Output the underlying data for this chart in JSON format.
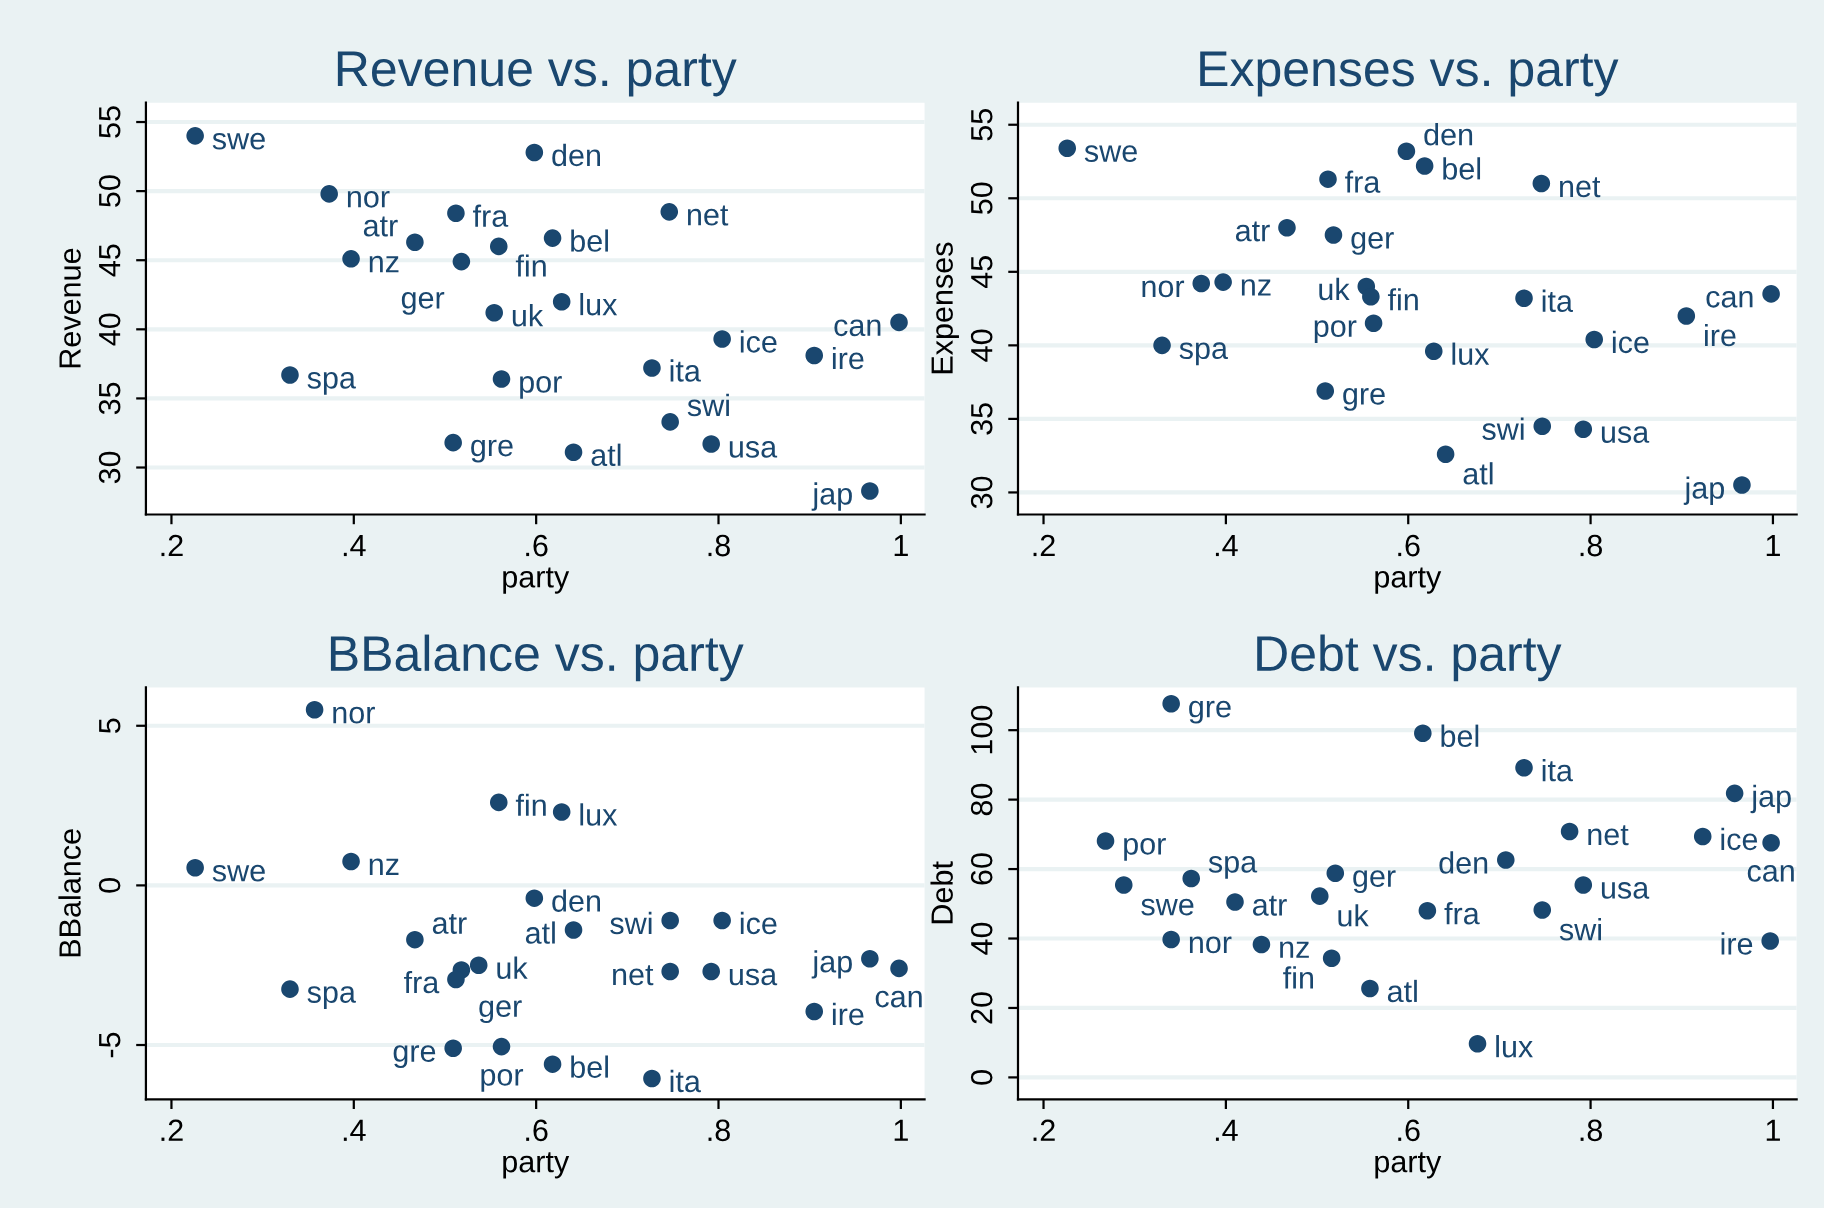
{
  "chart_data": [
    {
      "type": "scatter",
      "title": "Revenue vs. party",
      "xlabel": "party",
      "ylabel": "Revenue",
      "marker": "circle",
      "grid": "y",
      "xlim": [
        0.172,
        1.026
      ],
      "ylim": [
        26.6,
        56.4
      ],
      "xticks": [
        {
          "value": 0.2,
          "label": ".2"
        },
        {
          "value": 0.4,
          "label": ".4"
        },
        {
          "value": 0.6,
          "label": ".6"
        },
        {
          "value": 0.8,
          "label": ".8"
        },
        1
      ],
      "yticks": [
        30,
        35,
        40,
        45,
        50,
        55
      ],
      "x": [
        0.226,
        0.598,
        0.373,
        0.512,
        0.746,
        0.467,
        0.559,
        0.618,
        0.397,
        0.518,
        0.628,
        0.554,
        0.998,
        0.804,
        0.905,
        0.727,
        0.33,
        0.562,
        0.747,
        0.792,
        0.509,
        0.641,
        0.966
      ],
      "series": [
        {
          "color": "#1a476f",
          "values": [
            54.0,
            52.8,
            49.8,
            48.4,
            48.5,
            46.3,
            46.0,
            46.6,
            45.1,
            44.9,
            42.0,
            41.2,
            40.5,
            39.3,
            38.1,
            37.2,
            36.7,
            36.4,
            33.3,
            31.7,
            31.8,
            31.1,
            28.3
          ]
        }
      ],
      "annotations": [
        {
          "text": "swe",
          "x": 0.226,
          "y": 54.0
        },
        {
          "text": "den",
          "x": 0.598,
          "y": 52.8
        },
        {
          "text": "nor",
          "x": 0.373,
          "y": 49.8
        },
        {
          "text": "fra",
          "x": 0.512,
          "y": 48.4
        },
        {
          "text": "net",
          "x": 0.746,
          "y": 48.5
        },
        {
          "text": "atr",
          "x": 0.467,
          "y": 46.3
        },
        {
          "text": "fin",
          "x": 0.559,
          "y": 46.0
        },
        {
          "text": "bel",
          "x": 0.618,
          "y": 46.6
        },
        {
          "text": "nz",
          "x": 0.397,
          "y": 45.1
        },
        {
          "text": "ger",
          "x": 0.518,
          "y": 44.9
        },
        {
          "text": "lux",
          "x": 0.628,
          "y": 42.0
        },
        {
          "text": "uk",
          "x": 0.554,
          "y": 41.2
        },
        {
          "text": "can",
          "x": 0.998,
          "y": 40.5
        },
        {
          "text": "ice",
          "x": 0.804,
          "y": 39.3
        },
        {
          "text": "ire",
          "x": 0.905,
          "y": 38.1
        },
        {
          "text": "ita",
          "x": 0.727,
          "y": 37.2
        },
        {
          "text": "spa",
          "x": 0.33,
          "y": 36.7
        },
        {
          "text": "por",
          "x": 0.562,
          "y": 36.4
        },
        {
          "text": "swi",
          "x": 0.747,
          "y": 33.3
        },
        {
          "text": "usa",
          "x": 0.792,
          "y": 31.7
        },
        {
          "text": "gre",
          "x": 0.509,
          "y": 31.8
        },
        {
          "text": "atl",
          "x": 0.641,
          "y": 31.1
        },
        {
          "text": "jap",
          "x": 0.966,
          "y": 28.3
        }
      ]
    },
    {
      "type": "scatter",
      "title": "Expenses vs. party",
      "xlabel": "party",
      "ylabel": "Expenses",
      "marker": "circle",
      "grid": "y",
      "xlim": [
        0.172,
        1.026
      ],
      "ylim": [
        28.5,
        56.5
      ],
      "xticks": [
        {
          "value": 0.2,
          "label": ".2"
        },
        {
          "value": 0.4,
          "label": ".4"
        },
        {
          "value": 0.6,
          "label": ".6"
        },
        {
          "value": 0.8,
          "label": ".8"
        },
        1
      ],
      "yticks": [
        30,
        35,
        40,
        45,
        50,
        55
      ],
      "x": [
        0.226,
        0.598,
        0.618,
        0.512,
        0.746,
        0.467,
        0.518,
        0.373,
        0.397,
        0.554,
        0.559,
        0.727,
        0.998,
        0.905,
        0.562,
        0.33,
        0.804,
        0.628,
        0.509,
        0.747,
        0.792,
        0.641,
        0.966
      ],
      "series": [
        {
          "color": "#1a476f",
          "values": [
            53.4,
            53.2,
            52.2,
            51.3,
            51.0,
            48.0,
            47.5,
            44.2,
            44.3,
            44.0,
            43.3,
            43.2,
            43.5,
            42.0,
            41.5,
            40.0,
            40.4,
            39.6,
            36.9,
            34.5,
            34.3,
            32.6,
            30.5
          ]
        }
      ],
      "annotations": [
        {
          "text": "swe",
          "x": 0.226,
          "y": 53.4
        },
        {
          "text": "den",
          "x": 0.598,
          "y": 53.2
        },
        {
          "text": "bel",
          "x": 0.618,
          "y": 52.2
        },
        {
          "text": "fra",
          "x": 0.512,
          "y": 51.3
        },
        {
          "text": "net",
          "x": 0.746,
          "y": 51.0
        },
        {
          "text": "atr",
          "x": 0.467,
          "y": 48.0
        },
        {
          "text": "ger",
          "x": 0.518,
          "y": 47.5
        },
        {
          "text": "nor",
          "x": 0.373,
          "y": 44.2
        },
        {
          "text": "nz",
          "x": 0.397,
          "y": 44.3
        },
        {
          "text": "uk",
          "x": 0.554,
          "y": 44.0
        },
        {
          "text": "fin",
          "x": 0.559,
          "y": 43.3
        },
        {
          "text": "ita",
          "x": 0.727,
          "y": 43.2
        },
        {
          "text": "can",
          "x": 0.998,
          "y": 43.5
        },
        {
          "text": "ire",
          "x": 0.905,
          "y": 42.0
        },
        {
          "text": "por",
          "x": 0.562,
          "y": 41.5
        },
        {
          "text": "spa",
          "x": 0.33,
          "y": 40.0
        },
        {
          "text": "ice",
          "x": 0.804,
          "y": 40.4
        },
        {
          "text": "lux",
          "x": 0.628,
          "y": 39.6
        },
        {
          "text": "gre",
          "x": 0.509,
          "y": 36.9
        },
        {
          "text": "swi",
          "x": 0.747,
          "y": 34.5
        },
        {
          "text": "usa",
          "x": 0.792,
          "y": 34.3
        },
        {
          "text": "atl",
          "x": 0.641,
          "y": 32.6
        },
        {
          "text": "jap",
          "x": 0.966,
          "y": 30.5
        }
      ]
    },
    {
      "type": "scatter",
      "title": "BBalance vs. party",
      "xlabel": "party",
      "ylabel": "BBalance",
      "marker": "circle",
      "grid": "y",
      "xlim": [
        0.172,
        1.026
      ],
      "ylim": [
        -6.7,
        6.2
      ],
      "xticks": [
        {
          "value": 0.2,
          "label": ".2"
        },
        {
          "value": 0.4,
          "label": ".4"
        },
        {
          "value": 0.6,
          "label": ".6"
        },
        {
          "value": 0.8,
          "label": ".8"
        },
        1
      ],
      "yticks": [
        -5,
        0,
        5
      ],
      "x": [
        0.357,
        0.559,
        0.628,
        0.226,
        0.397,
        0.598,
        0.747,
        0.804,
        0.641,
        0.467,
        0.537,
        0.518,
        0.512,
        0.747,
        0.792,
        0.966,
        0.998,
        0.33,
        0.905,
        0.509,
        0.562,
        0.618,
        0.727
      ],
      "series": [
        {
          "color": "#1a476f",
          "values": [
            5.5,
            2.6,
            2.3,
            0.55,
            0.75,
            -0.4,
            -1.1,
            -1.1,
            -1.4,
            -1.7,
            -2.5,
            -2.65,
            -2.95,
            -2.7,
            -2.7,
            -2.3,
            -2.6,
            -3.25,
            -3.95,
            -5.1,
            -5.05,
            -5.6,
            -6.05
          ]
        }
      ],
      "annotations": [
        {
          "text": "nor",
          "x": 0.357,
          "y": 5.5
        },
        {
          "text": "fin",
          "x": 0.559,
          "y": 2.6
        },
        {
          "text": "lux",
          "x": 0.628,
          "y": 2.3
        },
        {
          "text": "swe",
          "x": 0.226,
          "y": 0.55
        },
        {
          "text": "nz",
          "x": 0.397,
          "y": 0.75
        },
        {
          "text": "den",
          "x": 0.598,
          "y": -0.4
        },
        {
          "text": "swi",
          "x": 0.747,
          "y": -1.1
        },
        {
          "text": "ice",
          "x": 0.804,
          "y": -1.1
        },
        {
          "text": "atl",
          "x": 0.641,
          "y": -1.4
        },
        {
          "text": "atr",
          "x": 0.467,
          "y": -1.7
        },
        {
          "text": "uk",
          "x": 0.537,
          "y": -2.5
        },
        {
          "text": "ger",
          "x": 0.518,
          "y": -2.65
        },
        {
          "text": "fra",
          "x": 0.512,
          "y": -2.95
        },
        {
          "text": "net",
          "x": 0.747,
          "y": -2.7
        },
        {
          "text": "usa",
          "x": 0.792,
          "y": -2.7
        },
        {
          "text": "jap",
          "x": 0.966,
          "y": -2.3
        },
        {
          "text": "can",
          "x": 0.998,
          "y": -2.6
        },
        {
          "text": "spa",
          "x": 0.33,
          "y": -3.25
        },
        {
          "text": "ire",
          "x": 0.905,
          "y": -3.95
        },
        {
          "text": "gre",
          "x": 0.509,
          "y": -5.1
        },
        {
          "text": "por",
          "x": 0.562,
          "y": -5.05
        },
        {
          "text": "bel",
          "x": 0.618,
          "y": -5.6
        },
        {
          "text": "ita",
          "x": 0.727,
          "y": -6.05
        }
      ]
    },
    {
      "type": "scatter",
      "title": "Debt vs. party",
      "xlabel": "party",
      "ylabel": "Debt",
      "marker": "circle",
      "grid": "y",
      "xlim": [
        0.172,
        1.026
      ],
      "ylim": [
        -6.3,
        112.3
      ],
      "xticks": [
        {
          "value": 0.2,
          "label": ".2"
        },
        {
          "value": 0.4,
          "label": ".4"
        },
        {
          "value": 0.6,
          "label": ".6"
        },
        {
          "value": 0.8,
          "label": ".8"
        },
        1
      ],
      "yticks": [
        0,
        20,
        40,
        60,
        80,
        100
      ],
      "x": [
        0.34,
        0.616,
        0.727,
        0.958,
        0.777,
        0.923,
        0.998,
        0.268,
        0.707,
        0.52,
        0.362,
        0.288,
        0.792,
        0.503,
        0.41,
        0.621,
        0.747,
        0.34,
        0.997,
        0.439,
        0.516,
        0.558,
        0.676
      ],
      "series": [
        {
          "color": "#1a476f",
          "values": [
            107.6,
            99.1,
            89.2,
            81.8,
            70.8,
            69.4,
            67.6,
            68.1,
            62.6,
            58.8,
            57.3,
            55.4,
            55.4,
            52.2,
            50.5,
            48.0,
            48.2,
            39.7,
            39.3,
            38.3,
            34.3,
            25.6,
            9.7
          ]
        }
      ],
      "annotations": [
        {
          "text": "gre",
          "x": 0.34,
          "y": 107.6
        },
        {
          "text": "bel",
          "x": 0.616,
          "y": 99.1
        },
        {
          "text": "ita",
          "x": 0.727,
          "y": 89.2
        },
        {
          "text": "jap",
          "x": 0.958,
          "y": 81.8
        },
        {
          "text": "net",
          "x": 0.777,
          "y": 70.8
        },
        {
          "text": "ice",
          "x": 0.923,
          "y": 69.4
        },
        {
          "text": "can",
          "x": 0.998,
          "y": 67.6
        },
        {
          "text": "por",
          "x": 0.268,
          "y": 68.1
        },
        {
          "text": "den",
          "x": 0.707,
          "y": 62.6
        },
        {
          "text": "ger",
          "x": 0.52,
          "y": 58.8
        },
        {
          "text": "spa",
          "x": 0.362,
          "y": 57.3
        },
        {
          "text": "swe",
          "x": 0.288,
          "y": 55.4
        },
        {
          "text": "usa",
          "x": 0.792,
          "y": 55.4
        },
        {
          "text": "uk",
          "x": 0.503,
          "y": 52.2
        },
        {
          "text": "atr",
          "x": 0.41,
          "y": 50.5
        },
        {
          "text": "fra",
          "x": 0.621,
          "y": 48.0
        },
        {
          "text": "swi",
          "x": 0.747,
          "y": 48.2
        },
        {
          "text": "nor",
          "x": 0.34,
          "y": 39.7
        },
        {
          "text": "ire",
          "x": 0.997,
          "y": 39.3
        },
        {
          "text": "nz",
          "x": 0.439,
          "y": 38.3
        },
        {
          "text": "fin",
          "x": 0.516,
          "y": 34.3
        },
        {
          "text": "atl",
          "x": 0.558,
          "y": 25.6
        },
        {
          "text": "lux",
          "x": 0.676,
          "y": 9.7
        }
      ]
    }
  ]
}
